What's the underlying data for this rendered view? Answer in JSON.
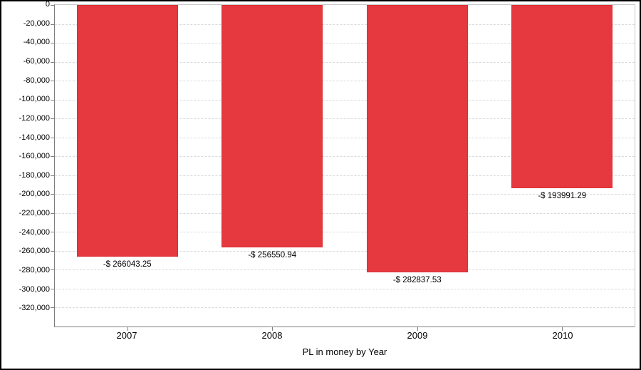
{
  "window": {
    "background_color": "#ffffff",
    "border_color": "#000000"
  },
  "chart_data": {
    "type": "bar",
    "title": "PL in money by Year",
    "xlabel": "PL in money by Year",
    "ylabel": "",
    "categories": [
      "2007",
      "2008",
      "2009",
      "2010"
    ],
    "values": [
      -266043.25,
      -256550.94,
      -282837.53,
      -193991.29
    ],
    "bar_labels": [
      "-$ 266043.25",
      "-$ 256550.94",
      "-$ 282837.53",
      "-$ 193991.29"
    ],
    "ylim": [
      -340000,
      0
    ],
    "y_tick_values": [
      0,
      -20000,
      -40000,
      -60000,
      -80000,
      -100000,
      -120000,
      -140000,
      -160000,
      -180000,
      -200000,
      -220000,
      -240000,
      -260000,
      -280000,
      -300000,
      -320000
    ],
    "y_tick_labels": [
      "0",
      "-20,000",
      "-40,000",
      "-60,000",
      "-80,000",
      "-100,000",
      "-120,000",
      "-140,000",
      "-160,000",
      "-180,000",
      "-200,000",
      "-220,000",
      "-240,000",
      "-260,000",
      "-280,000",
      "-300,000",
      "-320,000"
    ],
    "grid": "horizontal-dashed",
    "legend": "none",
    "bar_color": "#e5393f",
    "bar_border_color": "#dd2e35",
    "axis_line_color": "#7f7f7f",
    "plot_border_color": "#c8c8c8",
    "gridline_color": "#d9d9d9",
    "text_color": "#000000",
    "bar_width_fraction": 0.7
  }
}
